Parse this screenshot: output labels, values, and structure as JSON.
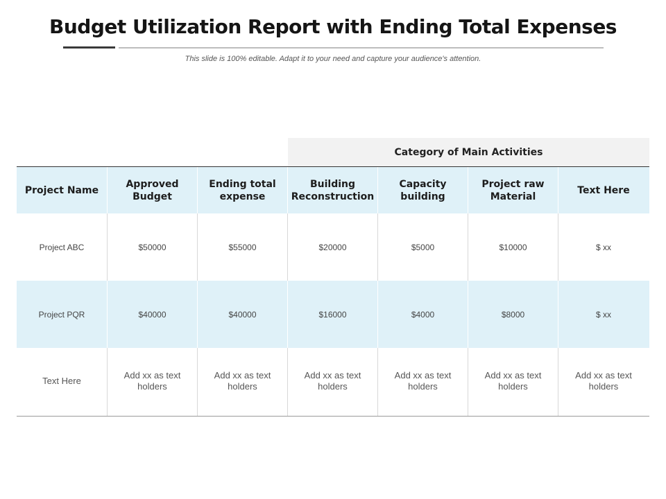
{
  "title": "Budget Utilization Report with Ending Total Expenses",
  "subtitle": "This slide is 100% editable. Adapt it to your need and capture your audience's attention.",
  "table": {
    "group_header": "Category of Main Activities",
    "headers": [
      "Project Name",
      "Approved Budget",
      "Ending total expense",
      "Building Reconstruction",
      "Capacity building",
      "Project raw Material",
      "Text Here"
    ],
    "rows": [
      [
        "Project ABC",
        "$50000",
        "$55000",
        "$20000",
        "$5000",
        "$10000",
        "$ xx"
      ],
      [
        "Project PQR",
        "$40000",
        "$40000",
        "$16000",
        "$4000",
        "$8000",
        "$ xx"
      ],
      [
        "Text Here",
        "Add xx as  text holders",
        "Add xx as  text holders",
        "Add xx as  text holders",
        "Add xx as  text holders",
        "Add xx as  text holders",
        "Add xx as  text holders"
      ]
    ]
  }
}
